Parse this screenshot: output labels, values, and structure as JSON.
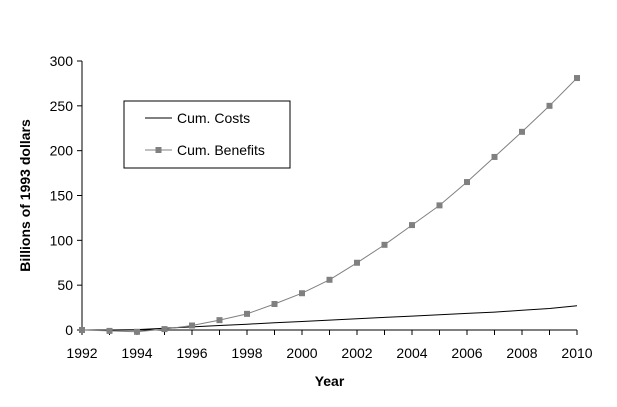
{
  "chart_data": {
    "type": "line",
    "title": "",
    "xlabel": "Year",
    "ylabel": "Billions of 1993 dollars",
    "xlim": [
      1992,
      2010
    ],
    "ylim": [
      0,
      300
    ],
    "x_ticks": [
      "1992",
      "1994",
      "1996",
      "1998",
      "2000",
      "2002",
      "2004",
      "2006",
      "2008",
      "2010"
    ],
    "y_ticks": [
      "0",
      "50",
      "100",
      "150",
      "200",
      "250",
      "300"
    ],
    "grid": false,
    "legend_position": "top-left",
    "x": [
      1992,
      1993,
      1994,
      1995,
      1996,
      1997,
      1998,
      1999,
      2000,
      2001,
      2002,
      2003,
      2004,
      2005,
      2006,
      2007,
      2008,
      2009,
      2010
    ],
    "series": [
      {
        "name": "Cum. Costs",
        "color": "#000000",
        "marker": "none",
        "values": [
          0,
          0,
          0.5,
          2,
          3.5,
          5,
          6.5,
          8,
          9.5,
          11,
          12.5,
          14,
          15.5,
          17,
          18.5,
          20,
          22,
          24,
          27
        ]
      },
      {
        "name": "Cum. Benefits",
        "color": "#808080",
        "marker": "square",
        "values": [
          0,
          -1,
          -2,
          1,
          5,
          11,
          18,
          29,
          41,
          56,
          75,
          95,
          117,
          139,
          165,
          193,
          221,
          250,
          281
        ]
      }
    ]
  }
}
